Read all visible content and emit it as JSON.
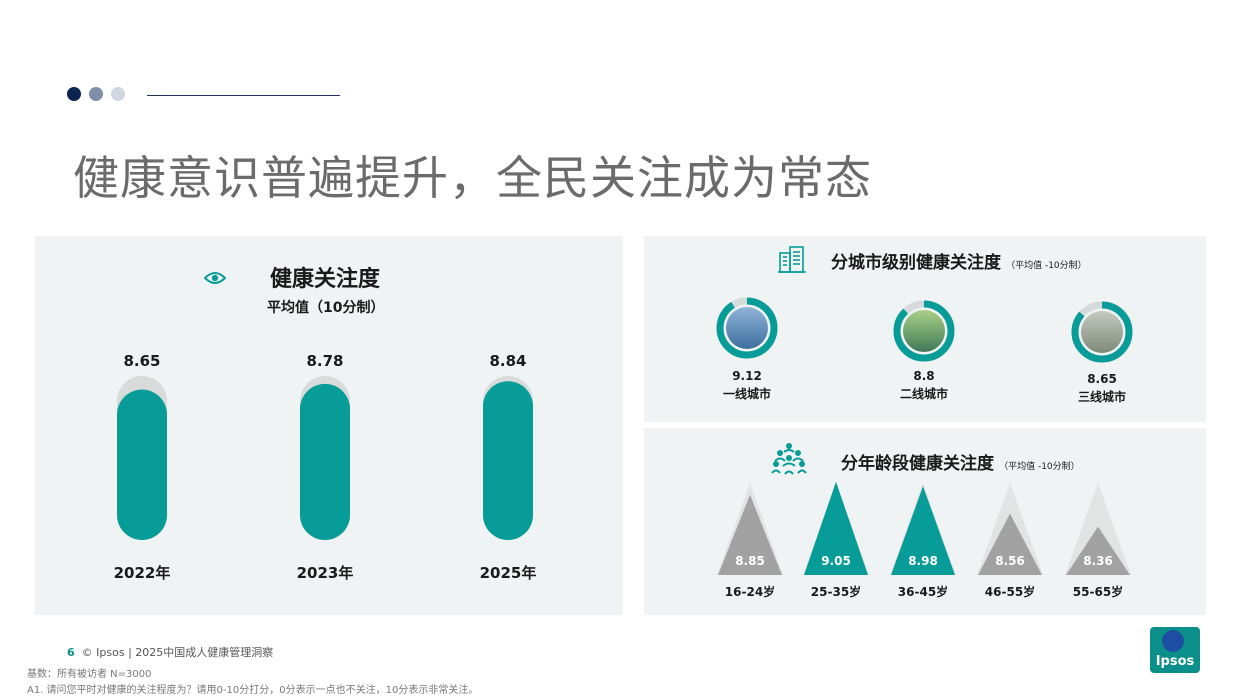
{
  "header": {
    "title": "健康意识普遍提升，全民关注成为常态",
    "dot_colors": [
      "#0d2350",
      "#7f8fa8",
      "#cfd6e0"
    ]
  },
  "left_panel": {
    "title": "健康关注度",
    "subtitle": "平均值（10分制）",
    "icon": "eye-icon"
  },
  "city_panel": {
    "title": "分城市级别健康关注度",
    "note": "（平均值 -10分制）",
    "icon": "buildings-icon"
  },
  "age_panel": {
    "title": "分年龄段健康关注度",
    "note": "（平均值 -10分制）",
    "icon": "people-group-icon"
  },
  "chart_data": [
    {
      "type": "bar",
      "title": "健康关注度",
      "subtitle": "平均值（10分制）",
      "categories": [
        "2022年",
        "2023年",
        "2025年"
      ],
      "values": [
        8.65,
        8.78,
        8.84
      ],
      "ylim": [
        0,
        10
      ],
      "color": "#079c97",
      "track_color": "#d9dbdb"
    },
    {
      "type": "pie",
      "title": "分城市级别健康关注度",
      "subtitle": "（平均值 -10分制）",
      "categories": [
        "一线城市",
        "二线城市",
        "三线城市"
      ],
      "values": [
        9.12,
        8.8,
        8.65
      ],
      "max": 10,
      "color": "#079c97"
    },
    {
      "type": "bar",
      "title": "分年龄段健康关注度",
      "subtitle": "（平均值 -10分制）",
      "categories": [
        "16-24岁",
        "25-35岁",
        "36-45岁",
        "46-55岁",
        "55-65岁"
      ],
      "values": [
        8.85,
        9.05,
        8.98,
        8.56,
        8.36
      ],
      "highlight": [
        false,
        true,
        true,
        false,
        false
      ],
      "highlight_color": "#079c97",
      "base_color": "#a2a2a2"
    }
  ],
  "footer": {
    "page_number": "6",
    "source": "© Ipsos | 2025中国成人健康管理洞察",
    "base_note": "基数：所有被访者 N=3000",
    "question_note": "A1. 请问您平时对健康的关注程度为？请用0-10分打分，0分表示一点也不关注，10分表示非常关注。",
    "logo_text": "Ipsos",
    "logo_color": "#1d4ea1"
  }
}
